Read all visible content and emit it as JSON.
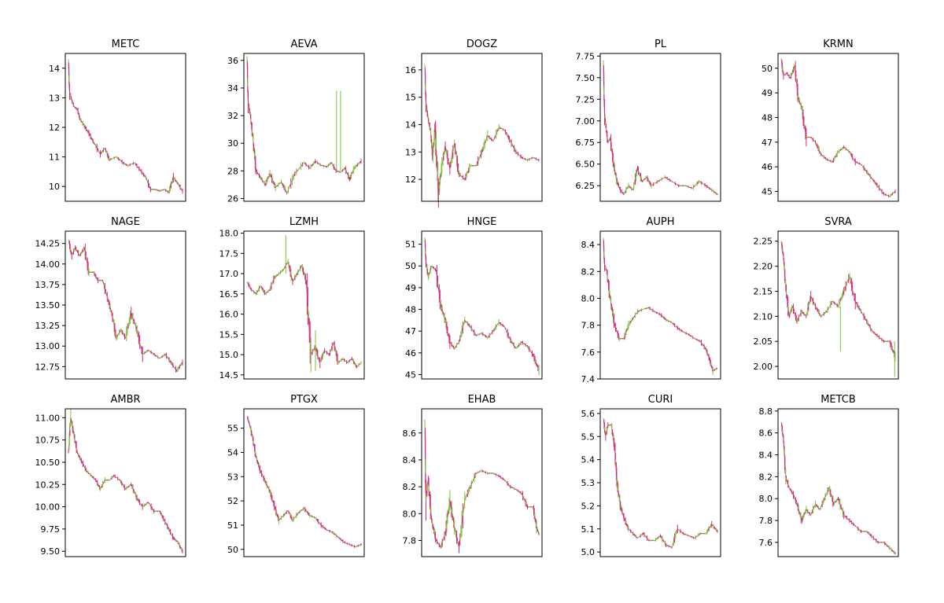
{
  "chart_data": [
    {
      "type": "line",
      "title": "METC",
      "ylim": [
        9.5,
        14.5
      ],
      "yticks": [
        10,
        11,
        12,
        13,
        14
      ],
      "tick_labels": [
        "10",
        "11",
        "12",
        "13",
        "14"
      ],
      "x": [
        0,
        0.01,
        0.03,
        0.05,
        0.08,
        0.1,
        0.13,
        0.18,
        0.22,
        0.28,
        0.32,
        0.36,
        0.42,
        0.48,
        0.52,
        0.58,
        0.62,
        0.68,
        0.72,
        0.76,
        0.8,
        0.84,
        0.88,
        0.92,
        0.96,
        1.0
      ],
      "values": [
        14.3,
        13.2,
        12.9,
        12.7,
        12.6,
        12.3,
        12.1,
        11.8,
        11.5,
        11.1,
        11.3,
        10.9,
        11.0,
        10.8,
        10.7,
        10.8,
        10.6,
        10.3,
        9.9,
        9.9,
        9.85,
        9.9,
        9.8,
        10.3,
        10.1,
        9.85
      ]
    },
    {
      "type": "line",
      "title": "AEVA",
      "ylim": [
        25.8,
        36.5
      ],
      "yticks": [
        26,
        28,
        30,
        32,
        34,
        36
      ],
      "tick_labels": [
        "26",
        "28",
        "30",
        "32",
        "34",
        "36"
      ],
      "x": [
        0,
        0.01,
        0.03,
        0.05,
        0.08,
        0.12,
        0.16,
        0.2,
        0.25,
        0.3,
        0.35,
        0.42,
        0.5,
        0.55,
        0.6,
        0.65,
        0.7,
        0.74,
        0.78,
        0.82,
        0.86,
        0.9,
        0.94,
        1.0
      ],
      "values": [
        36.3,
        33,
        32,
        30.5,
        28,
        27.5,
        27,
        27.8,
        26.8,
        27.2,
        26.4,
        27.8,
        28.6,
        28.2,
        28.7,
        28.4,
        28.3,
        28.6,
        28,
        27.9,
        28.2,
        27.4,
        28.2,
        28.7
      ],
      "spikes": [
        {
          "x": 0.785,
          "low": 28,
          "high": 33.8
        },
        {
          "x": 0.82,
          "low": 28,
          "high": 33.8
        }
      ]
    },
    {
      "type": "line",
      "title": "DOGZ",
      "ylim": [
        11.2,
        16.6
      ],
      "yticks": [
        12,
        13,
        14,
        15,
        16
      ],
      "tick_labels": [
        "12",
        "13",
        "14",
        "15",
        "16"
      ],
      "x": [
        0,
        0.01,
        0.03,
        0.05,
        0.07,
        0.09,
        0.12,
        0.15,
        0.18,
        0.22,
        0.26,
        0.3,
        0.35,
        0.4,
        0.45,
        0.5,
        0.55,
        0.6,
        0.65,
        0.7,
        0.75,
        0.8,
        0.85,
        0.9,
        0.95,
        1.0
      ],
      "values": [
        16.2,
        14.8,
        14.2,
        13.8,
        12.8,
        13.9,
        11.5,
        12.5,
        13.2,
        12.4,
        13.3,
        12.2,
        12.0,
        12.5,
        12.5,
        13.0,
        13.6,
        13.4,
        13.9,
        13.8,
        13.4,
        13.0,
        12.8,
        12.7,
        12.8,
        12.7
      ]
    },
    {
      "type": "line",
      "title": "PL",
      "ylim": [
        6.07,
        7.78
      ],
      "yticks": [
        6.25,
        6.5,
        6.75,
        7.0,
        7.25,
        7.5,
        7.75
      ],
      "tick_labels": [
        "6.25",
        "6.50",
        "6.75",
        "7.00",
        "7.25",
        "7.50",
        "7.75"
      ],
      "x": [
        0,
        0.01,
        0.02,
        0.04,
        0.06,
        0.09,
        0.12,
        0.15,
        0.18,
        0.22,
        0.26,
        0.3,
        0.34,
        0.38,
        0.42,
        0.48,
        0.54,
        0.6,
        0.66,
        0.72,
        0.78,
        0.84,
        0.9,
        0.95,
        1.0
      ],
      "values": [
        7.7,
        7.1,
        6.95,
        6.75,
        6.8,
        6.5,
        6.3,
        6.2,
        6.15,
        6.25,
        6.2,
        6.45,
        6.3,
        6.35,
        6.25,
        6.3,
        6.35,
        6.3,
        6.25,
        6.25,
        6.22,
        6.3,
        6.25,
        6.2,
        6.15
      ]
    },
    {
      "type": "line",
      "title": "KRMN",
      "ylim": [
        44.6,
        50.6
      ],
      "yticks": [
        45,
        46,
        47,
        48,
        49,
        50
      ],
      "tick_labels": [
        "45",
        "46",
        "47",
        "48",
        "49",
        "50"
      ],
      "x": [
        0,
        0.02,
        0.05,
        0.08,
        0.12,
        0.15,
        0.18,
        0.22,
        0.26,
        0.3,
        0.35,
        0.4,
        0.45,
        0.5,
        0.55,
        0.6,
        0.65,
        0.7,
        0.75,
        0.8,
        0.85,
        0.9,
        0.95,
        1.0
      ],
      "values": [
        50.4,
        49.7,
        49.8,
        49.6,
        50.1,
        48.8,
        48.4,
        47.2,
        47.2,
        47.0,
        46.5,
        46.3,
        46.2,
        46.6,
        46.8,
        46.6,
        46.2,
        46.1,
        45.8,
        45.5,
        45.2,
        44.9,
        44.8,
        45.0
      ]
    },
    {
      "type": "line",
      "title": "NAGE",
      "ylim": [
        12.6,
        14.4
      ],
      "yticks": [
        12.75,
        13.0,
        13.25,
        13.5,
        13.75,
        14.0,
        14.25
      ],
      "tick_labels": [
        "12.75",
        "13.00",
        "13.25",
        "13.50",
        "13.75",
        "14.00",
        "14.25"
      ],
      "x": [
        0,
        0.03,
        0.06,
        0.1,
        0.14,
        0.18,
        0.22,
        0.26,
        0.3,
        0.34,
        0.38,
        0.42,
        0.46,
        0.5,
        0.55,
        0.6,
        0.65,
        0.7,
        0.75,
        0.8,
        0.85,
        0.9,
        0.95,
        1.0
      ],
      "values": [
        14.3,
        14.1,
        14.2,
        14.1,
        14.2,
        13.9,
        13.9,
        13.8,
        13.8,
        13.6,
        13.4,
        13.1,
        13.2,
        13.1,
        13.4,
        13.2,
        12.9,
        12.95,
        12.9,
        12.85,
        12.9,
        12.8,
        12.7,
        12.8
      ]
    },
    {
      "type": "line",
      "title": "LZMH",
      "ylim": [
        14.4,
        18.05
      ],
      "yticks": [
        14.5,
        15.0,
        15.5,
        16.0,
        16.5,
        17.0,
        17.5,
        18.0
      ],
      "tick_labels": [
        "14.5",
        "15.0",
        "15.5",
        "16.0",
        "16.5",
        "17.0",
        "17.5",
        "18.0"
      ],
      "x": [
        0,
        0.04,
        0.08,
        0.12,
        0.16,
        0.2,
        0.24,
        0.28,
        0.32,
        0.36,
        0.4,
        0.44,
        0.48,
        0.52,
        0.56,
        0.6,
        0.64,
        0.68,
        0.72,
        0.76,
        0.8,
        0.84,
        0.88,
        0.92,
        0.96,
        1.0
      ],
      "values": [
        16.8,
        16.6,
        16.5,
        16.7,
        16.5,
        16.6,
        16.9,
        17.0,
        17.1,
        17.3,
        16.8,
        17.0,
        17.2,
        16.8,
        15.0,
        15.2,
        14.8,
        15.1,
        15.0,
        15.3,
        14.8,
        14.9,
        14.8,
        14.9,
        14.7,
        14.8
      ],
      "spikes": [
        {
          "x": 0.34,
          "low": 17.0,
          "high": 17.95
        },
        {
          "x": 0.6,
          "low": 14.6,
          "high": 15.6
        }
      ]
    },
    {
      "type": "line",
      "title": "HNGE",
      "ylim": [
        44.8,
        51.6
      ],
      "yticks": [
        45,
        46,
        47,
        48,
        49,
        50,
        51
      ],
      "tick_labels": [
        "45",
        "46",
        "47",
        "48",
        "49",
        "50",
        "51"
      ],
      "x": [
        0,
        0.01,
        0.03,
        0.06,
        0.1,
        0.14,
        0.18,
        0.22,
        0.26,
        0.3,
        0.35,
        0.4,
        0.45,
        0.5,
        0.55,
        0.6,
        0.65,
        0.7,
        0.75,
        0.8,
        0.85,
        0.9,
        0.95,
        1.0
      ],
      "values": [
        51.3,
        50.2,
        49.5,
        50.0,
        49.8,
        48.2,
        47.5,
        46.5,
        46.2,
        46.5,
        47.5,
        47.2,
        46.8,
        46.9,
        46.7,
        47.0,
        47.4,
        47.2,
        46.6,
        46.2,
        46.5,
        46.3,
        45.9,
        45.2
      ]
    },
    {
      "type": "line",
      "title": "AUPH",
      "ylim": [
        7.4,
        8.5
      ],
      "yticks": [
        7.4,
        7.6,
        7.8,
        8.0,
        8.2,
        8.4
      ],
      "tick_labels": [
        "7.4",
        "7.6",
        "7.8",
        "8.0",
        "8.2",
        "8.4"
      ],
      "x": [
        0,
        0.01,
        0.03,
        0.06,
        0.1,
        0.14,
        0.18,
        0.22,
        0.26,
        0.3,
        0.35,
        0.4,
        0.45,
        0.5,
        0.55,
        0.6,
        0.65,
        0.7,
        0.75,
        0.8,
        0.85,
        0.9,
        0.93,
        0.96,
        1.0
      ],
      "values": [
        8.45,
        8.25,
        8.2,
        8.0,
        7.8,
        7.7,
        7.7,
        7.8,
        7.85,
        7.9,
        7.92,
        7.93,
        7.9,
        7.88,
        7.84,
        7.82,
        7.78,
        7.75,
        7.73,
        7.7,
        7.68,
        7.62,
        7.55,
        7.46,
        7.48
      ]
    },
    {
      "type": "line",
      "title": "SVRA",
      "ylim": [
        1.975,
        2.27
      ],
      "yticks": [
        2.0,
        2.05,
        2.1,
        2.15,
        2.2,
        2.25
      ],
      "tick_labels": [
        "2.00",
        "2.05",
        "2.10",
        "2.15",
        "2.20",
        "2.25"
      ],
      "x": [
        0,
        0.02,
        0.04,
        0.07,
        0.1,
        0.14,
        0.18,
        0.22,
        0.26,
        0.3,
        0.35,
        0.4,
        0.45,
        0.5,
        0.55,
        0.6,
        0.65,
        0.7,
        0.75,
        0.8,
        0.85,
        0.9,
        0.95,
        1.0
      ],
      "values": [
        2.25,
        2.22,
        2.16,
        2.1,
        2.12,
        2.09,
        2.11,
        2.1,
        2.14,
        2.12,
        2.1,
        2.11,
        2.13,
        2.12,
        2.15,
        2.18,
        2.13,
        2.11,
        2.09,
        2.07,
        2.06,
        2.05,
        2.05,
        2.02
      ],
      "spikes": [
        {
          "x": 0.52,
          "low": 2.03,
          "high": 2.12
        },
        {
          "x": 0.995,
          "low": 1.98,
          "high": 2.05
        }
      ]
    },
    {
      "type": "line",
      "title": "AMBR",
      "ylim": [
        9.44,
        11.1
      ],
      "yticks": [
        9.5,
        9.75,
        10.0,
        10.25,
        10.5,
        10.75,
        11.0
      ],
      "tick_labels": [
        "9.50",
        "9.75",
        "10.00",
        "10.25",
        "10.50",
        "10.75",
        "11.00"
      ],
      "x": [
        0,
        0.02,
        0.05,
        0.08,
        0.12,
        0.16,
        0.2,
        0.24,
        0.28,
        0.32,
        0.36,
        0.4,
        0.45,
        0.5,
        0.55,
        0.6,
        0.65,
        0.7,
        0.75,
        0.8,
        0.84,
        0.88,
        0.92,
        0.96,
        1.0
      ],
      "values": [
        10.6,
        11.0,
        10.8,
        10.6,
        10.5,
        10.4,
        10.35,
        10.3,
        10.2,
        10.3,
        10.3,
        10.35,
        10.3,
        10.2,
        10.25,
        10.1,
        10.0,
        10.05,
        9.95,
        9.95,
        9.85,
        9.75,
        9.65,
        9.6,
        9.5
      ]
    },
    {
      "type": "line",
      "title": "PTGX",
      "ylim": [
        49.7,
        55.8
      ],
      "yticks": [
        50,
        51,
        52,
        53,
        54,
        55
      ],
      "tick_labels": [
        "50",
        "51",
        "52",
        "53",
        "54",
        "55"
      ],
      "x": [
        0,
        0.02,
        0.05,
        0.08,
        0.12,
        0.16,
        0.2,
        0.24,
        0.28,
        0.32,
        0.36,
        0.4,
        0.45,
        0.5,
        0.55,
        0.6,
        0.65,
        0.7,
        0.75,
        0.8,
        0.85,
        0.9,
        0.95,
        1.0
      ],
      "values": [
        55.5,
        55.2,
        54.6,
        53.8,
        53.2,
        52.8,
        52.4,
        51.8,
        51.2,
        51.4,
        51.6,
        51.2,
        51.5,
        51.7,
        51.4,
        51.3,
        51.0,
        50.8,
        50.7,
        50.5,
        50.3,
        50.2,
        50.1,
        50.2
      ]
    },
    {
      "type": "line",
      "title": "EHAB",
      "ylim": [
        7.68,
        8.78
      ],
      "yticks": [
        7.8,
        8.0,
        8.2,
        8.4,
        8.6
      ],
      "tick_labels": [
        "7.8",
        "8.0",
        "8.2",
        "8.4",
        "8.6"
      ],
      "x": [
        0,
        0.01,
        0.03,
        0.06,
        0.1,
        0.14,
        0.18,
        0.22,
        0.26,
        0.3,
        0.35,
        0.4,
        0.45,
        0.5,
        0.55,
        0.6,
        0.65,
        0.7,
        0.75,
        0.8,
        0.85,
        0.9,
        0.95,
        0.98,
        1.0
      ],
      "values": [
        8.7,
        8.1,
        8.25,
        7.95,
        7.8,
        7.75,
        7.85,
        8.1,
        7.9,
        7.75,
        8.1,
        8.2,
        8.3,
        8.32,
        8.3,
        8.3,
        8.28,
        8.25,
        8.2,
        8.18,
        8.15,
        8.05,
        8.05,
        7.9,
        7.85
      ]
    },
    {
      "type": "line",
      "title": "CURI",
      "ylim": [
        4.98,
        5.62
      ],
      "yticks": [
        5.0,
        5.1,
        5.2,
        5.3,
        5.4,
        5.5,
        5.6
      ],
      "tick_labels": [
        "5.0",
        "5.1",
        "5.2",
        "5.3",
        "5.4",
        "5.5",
        "5.6"
      ],
      "x": [
        0,
        0.02,
        0.04,
        0.07,
        0.1,
        0.12,
        0.15,
        0.18,
        0.22,
        0.26,
        0.3,
        0.35,
        0.4,
        0.45,
        0.5,
        0.55,
        0.6,
        0.65,
        0.7,
        0.75,
        0.8,
        0.85,
        0.9,
        0.95,
        1.0
      ],
      "values": [
        5.58,
        5.5,
        5.55,
        5.55,
        5.45,
        5.3,
        5.2,
        5.15,
        5.1,
        5.08,
        5.06,
        5.08,
        5.05,
        5.05,
        5.07,
        5.03,
        5.02,
        5.1,
        5.08,
        5.07,
        5.06,
        5.08,
        5.08,
        5.12,
        5.09
      ]
    },
    {
      "type": "line",
      "title": "METCB",
      "ylim": [
        7.47,
        8.82
      ],
      "yticks": [
        7.6,
        7.8,
        8.0,
        8.2,
        8.4,
        8.6,
        8.8
      ],
      "tick_labels": [
        "7.6",
        "7.8",
        "8.0",
        "8.2",
        "8.4",
        "8.6",
        "8.8"
      ],
      "x": [
        0,
        0.02,
        0.04,
        0.07,
        0.1,
        0.14,
        0.18,
        0.22,
        0.26,
        0.3,
        0.34,
        0.38,
        0.42,
        0.46,
        0.5,
        0.55,
        0.6,
        0.65,
        0.7,
        0.75,
        0.8,
        0.85,
        0.9,
        0.95,
        1.0
      ],
      "values": [
        8.7,
        8.55,
        8.2,
        8.1,
        8.05,
        7.95,
        7.8,
        7.9,
        7.85,
        7.95,
        7.9,
        8.0,
        8.1,
        7.95,
        8.0,
        7.85,
        7.8,
        7.75,
        7.7,
        7.7,
        7.65,
        7.6,
        7.6,
        7.55,
        7.5
      ]
    }
  ],
  "colors": {
    "up": "#7fbf3f",
    "down": "#d6287e"
  }
}
